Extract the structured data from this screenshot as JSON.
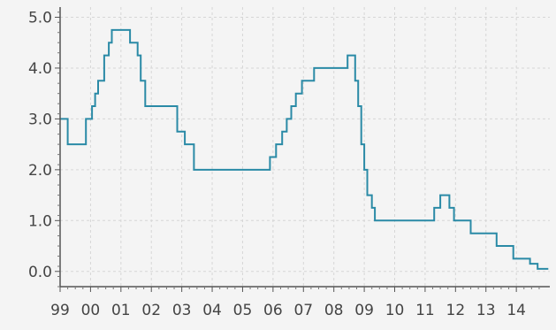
{
  "chart_data": {
    "type": "line",
    "step": true,
    "grid": true,
    "xlim": [
      1999,
      2015.1
    ],
    "ylim": [
      -0.3,
      5.2
    ],
    "x_ticks": [
      {
        "value": 1999,
        "label": "99"
      },
      {
        "value": 2000,
        "label": "00"
      },
      {
        "value": 2001,
        "label": "01"
      },
      {
        "value": 2002,
        "label": "02"
      },
      {
        "value": 2003,
        "label": "03"
      },
      {
        "value": 2004,
        "label": "04"
      },
      {
        "value": 2005,
        "label": "05"
      },
      {
        "value": 2006,
        "label": "06"
      },
      {
        "value": 2007,
        "label": "07"
      },
      {
        "value": 2008,
        "label": "08"
      },
      {
        "value": 2009,
        "label": "09"
      },
      {
        "value": 2010,
        "label": "10"
      },
      {
        "value": 2011,
        "label": "11"
      },
      {
        "value": 2012,
        "label": "12"
      },
      {
        "value": 2013,
        "label": "13"
      },
      {
        "value": 2014,
        "label": "14"
      }
    ],
    "y_ticks": [
      {
        "value": 0,
        "label": "0.0"
      },
      {
        "value": 1,
        "label": "1.0"
      },
      {
        "value": 2,
        "label": "2.0"
      },
      {
        "value": 3,
        "label": "3.0"
      },
      {
        "value": 4,
        "label": "4.0"
      },
      {
        "value": 5,
        "label": "5.0"
      }
    ],
    "series": [
      {
        "color": "#2a8aa6",
        "points": [
          [
            1999.0,
            3.0
          ],
          [
            1999.25,
            2.5
          ],
          [
            1999.85,
            3.0
          ],
          [
            2000.05,
            3.25
          ],
          [
            2000.15,
            3.5
          ],
          [
            2000.25,
            3.75
          ],
          [
            2000.45,
            4.25
          ],
          [
            2000.6,
            4.5
          ],
          [
            2000.7,
            4.75
          ],
          [
            2001.3,
            4.5
          ],
          [
            2001.55,
            4.25
          ],
          [
            2001.65,
            3.75
          ],
          [
            2001.8,
            3.25
          ],
          [
            2002.85,
            2.75
          ],
          [
            2003.1,
            2.5
          ],
          [
            2003.4,
            2.0
          ],
          [
            2005.9,
            2.25
          ],
          [
            2006.1,
            2.5
          ],
          [
            2006.3,
            2.75
          ],
          [
            2006.45,
            3.0
          ],
          [
            2006.6,
            3.25
          ],
          [
            2006.75,
            3.5
          ],
          [
            2006.95,
            3.75
          ],
          [
            2007.35,
            4.0
          ],
          [
            2008.45,
            4.25
          ],
          [
            2008.7,
            3.75
          ],
          [
            2008.8,
            3.25
          ],
          [
            2008.9,
            2.5
          ],
          [
            2009.0,
            2.0
          ],
          [
            2009.1,
            1.5
          ],
          [
            2009.25,
            1.25
          ],
          [
            2009.35,
            1.0
          ],
          [
            2011.3,
            1.25
          ],
          [
            2011.5,
            1.5
          ],
          [
            2011.8,
            1.25
          ],
          [
            2011.95,
            1.0
          ],
          [
            2012.5,
            0.75
          ],
          [
            2013.35,
            0.5
          ],
          [
            2013.9,
            0.25
          ],
          [
            2014.45,
            0.15
          ],
          [
            2014.7,
            0.05
          ],
          [
            2015.05,
            0.05
          ]
        ]
      }
    ]
  }
}
